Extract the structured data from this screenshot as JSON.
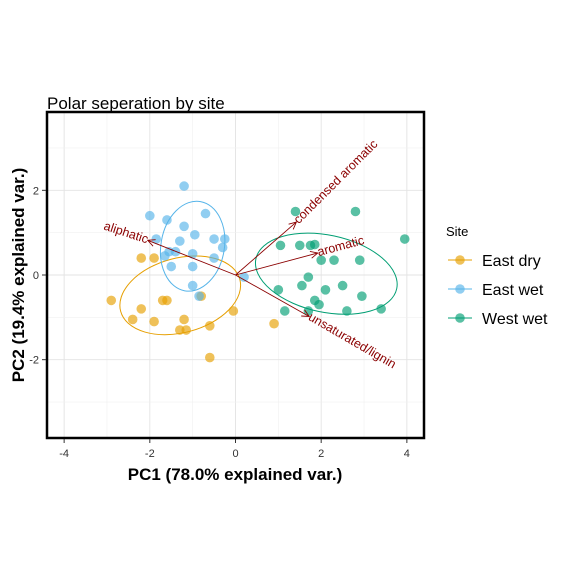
{
  "chart_data": {
    "type": "scatter",
    "title": "Polar seperation by site",
    "xlabel": "PC1 (78.0% explained var.)",
    "ylabel": "PC2 (19.4% explained var.)",
    "xlim": [
      -4.4,
      4.4
    ],
    "ylim": [
      -3.85,
      3.85
    ],
    "xticks": [
      -4,
      -2,
      0,
      2,
      4
    ],
    "yticks": [
      -2,
      0,
      2
    ],
    "grid": true,
    "legend": {
      "title": "Site",
      "position": "right"
    },
    "series": [
      {
        "name": "East dry",
        "color": "#E69F00",
        "points": [
          [
            -2.9,
            -0.6
          ],
          [
            -2.2,
            -0.8
          ],
          [
            -2.2,
            0.4
          ],
          [
            -1.9,
            0.4
          ],
          [
            -1.6,
            -0.6
          ],
          [
            -1.7,
            -0.6
          ],
          [
            -2.4,
            -1.05
          ],
          [
            -1.9,
            -1.1
          ],
          [
            -1.3,
            -1.3
          ],
          [
            -1.15,
            -1.3
          ],
          [
            -0.8,
            -0.5
          ],
          [
            -1.2,
            -1.05
          ],
          [
            -0.6,
            -1.2
          ],
          [
            -0.05,
            -0.85
          ],
          [
            -0.6,
            -1.95
          ],
          [
            0.9,
            -1.15
          ]
        ],
        "ellipse": {
          "center": [
            -1.29,
            -0.48
          ],
          "rx": 1.44,
          "ry": 0.88,
          "angle": -15
        }
      },
      {
        "name": "East wet",
        "color": "#56B4E9",
        "points": [
          [
            -1.2,
            2.1
          ],
          [
            -2.0,
            1.4
          ],
          [
            -1.6,
            1.3
          ],
          [
            -1.2,
            1.15
          ],
          [
            -0.7,
            1.45
          ],
          [
            -0.95,
            0.95
          ],
          [
            -1.85,
            0.85
          ],
          [
            -1.3,
            0.8
          ],
          [
            -0.5,
            0.85
          ],
          [
            -0.25,
            0.85
          ],
          [
            -0.3,
            0.65
          ],
          [
            -1.4,
            0.55
          ],
          [
            -1.65,
            0.45
          ],
          [
            -1.55,
            0.55
          ],
          [
            -1.0,
            0.5
          ],
          [
            -0.5,
            0.4
          ],
          [
            -1.0,
            0.2
          ],
          [
            -1.5,
            0.2
          ],
          [
            0.2,
            -0.05
          ],
          [
            -1.0,
            -0.25
          ],
          [
            -0.85,
            -0.5
          ]
        ],
        "ellipse": {
          "center": [
            -1.0,
            0.68
          ],
          "rx": 0.74,
          "ry": 1.07,
          "angle": 10
        }
      },
      {
        "name": "West wet",
        "color": "#009E73",
        "points": [
          [
            2.8,
            1.5
          ],
          [
            1.4,
            1.5
          ],
          [
            3.95,
            0.85
          ],
          [
            1.05,
            0.7
          ],
          [
            1.5,
            0.7
          ],
          [
            1.75,
            0.7
          ],
          [
            1.85,
            0.72
          ],
          [
            2.0,
            0.35
          ],
          [
            2.3,
            0.35
          ],
          [
            2.9,
            0.35
          ],
          [
            1.7,
            -0.05
          ],
          [
            1.55,
            -0.25
          ],
          [
            2.5,
            -0.25
          ],
          [
            2.1,
            -0.35
          ],
          [
            2.95,
            -0.5
          ],
          [
            1.85,
            -0.6
          ],
          [
            1.0,
            -0.35
          ],
          [
            1.95,
            -0.7
          ],
          [
            1.7,
            -0.85
          ],
          [
            1.15,
            -0.85
          ],
          [
            2.6,
            -0.85
          ],
          [
            3.4,
            -0.8
          ]
        ],
        "ellipse": {
          "center": [
            2.12,
            0.03
          ],
          "rx": 1.68,
          "ry": 0.91,
          "angle": 12
        }
      }
    ],
    "loadings": [
      {
        "label": "aliphatic",
        "x": -2.05,
        "y": 0.82,
        "label_angle": 18
      },
      {
        "label": "condensed aromatic",
        "x": 1.42,
        "y": 1.25,
        "label_angle": -45
      },
      {
        "label": "aromatic",
        "x": 1.92,
        "y": 0.52,
        "label_angle": -15
      },
      {
        "label": "unsaturated/lignin",
        "x": 1.72,
        "y": -0.98,
        "label_angle": 30
      }
    ],
    "loading_color": "#8B0000"
  }
}
